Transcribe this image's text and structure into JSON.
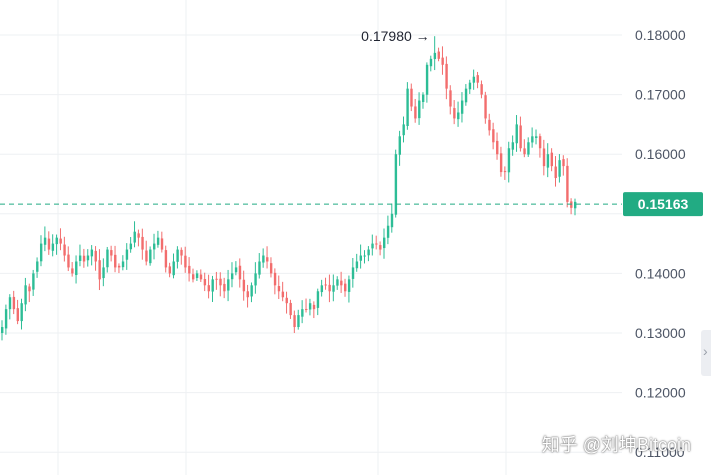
{
  "chart_data": {
    "type": "candlestick",
    "y_ticks": [
      "0.18000",
      "0.17000",
      "0.16000",
      "0.14000",
      "0.13000",
      "0.12000",
      "0.11000"
    ],
    "y_tick_values": [
      0.18,
      0.17,
      0.16,
      0.14,
      0.13,
      0.12,
      0.11
    ],
    "ylim": [
      0.1095,
      0.1825
    ],
    "grid": true,
    "high_label": "0.17980 →",
    "high_value": 0.1798,
    "current_price_label": "0.15163",
    "current_price": 0.15163,
    "up_color": "#2dbd96",
    "down_color": "#f26d6d",
    "current_color": "#22ab83",
    "approx_closes": [
      0.131,
      0.134,
      0.136,
      0.134,
      0.132,
      0.135,
      0.138,
      0.137,
      0.14,
      0.142,
      0.145,
      0.146,
      0.144,
      0.145,
      0.146,
      0.145,
      0.143,
      0.141,
      0.14,
      0.142,
      0.143,
      0.142,
      0.143,
      0.144,
      0.142,
      0.139,
      0.141,
      0.144,
      0.143,
      0.141,
      0.141,
      0.142,
      0.144,
      0.145,
      0.147,
      0.146,
      0.144,
      0.142,
      0.144,
      0.145,
      0.146,
      0.144,
      0.141,
      0.14,
      0.142,
      0.144,
      0.143,
      0.141,
      0.14,
      0.139,
      0.14,
      0.139,
      0.138,
      0.137,
      0.139,
      0.139,
      0.138,
      0.137,
      0.139,
      0.14,
      0.141,
      0.139,
      0.137,
      0.136,
      0.138,
      0.14,
      0.142,
      0.143,
      0.142,
      0.14,
      0.138,
      0.137,
      0.136,
      0.135,
      0.133,
      0.131,
      0.133,
      0.134,
      0.134,
      0.135,
      0.134,
      0.137,
      0.138,
      0.138,
      0.137,
      0.138,
      0.139,
      0.138,
      0.137,
      0.139,
      0.141,
      0.142,
      0.143,
      0.143,
      0.144,
      0.145,
      0.145,
      0.144,
      0.146,
      0.148,
      0.15,
      0.16,
      0.163,
      0.165,
      0.171,
      0.168,
      0.166,
      0.169,
      0.17,
      0.175,
      0.176,
      0.177,
      0.176,
      0.175,
      0.171,
      0.168,
      0.166,
      0.167,
      0.169,
      0.171,
      0.172,
      0.173,
      0.172,
      0.17,
      0.166,
      0.164,
      0.162,
      0.16,
      0.157,
      0.157,
      0.161,
      0.162,
      0.165,
      0.161,
      0.16,
      0.162,
      0.163,
      0.163,
      0.161,
      0.158,
      0.16,
      0.158,
      0.156,
      0.159,
      0.158,
      0.152,
      0.151,
      0.152
    ]
  },
  "watermark": "知乎 @刘坤Bitcoin"
}
